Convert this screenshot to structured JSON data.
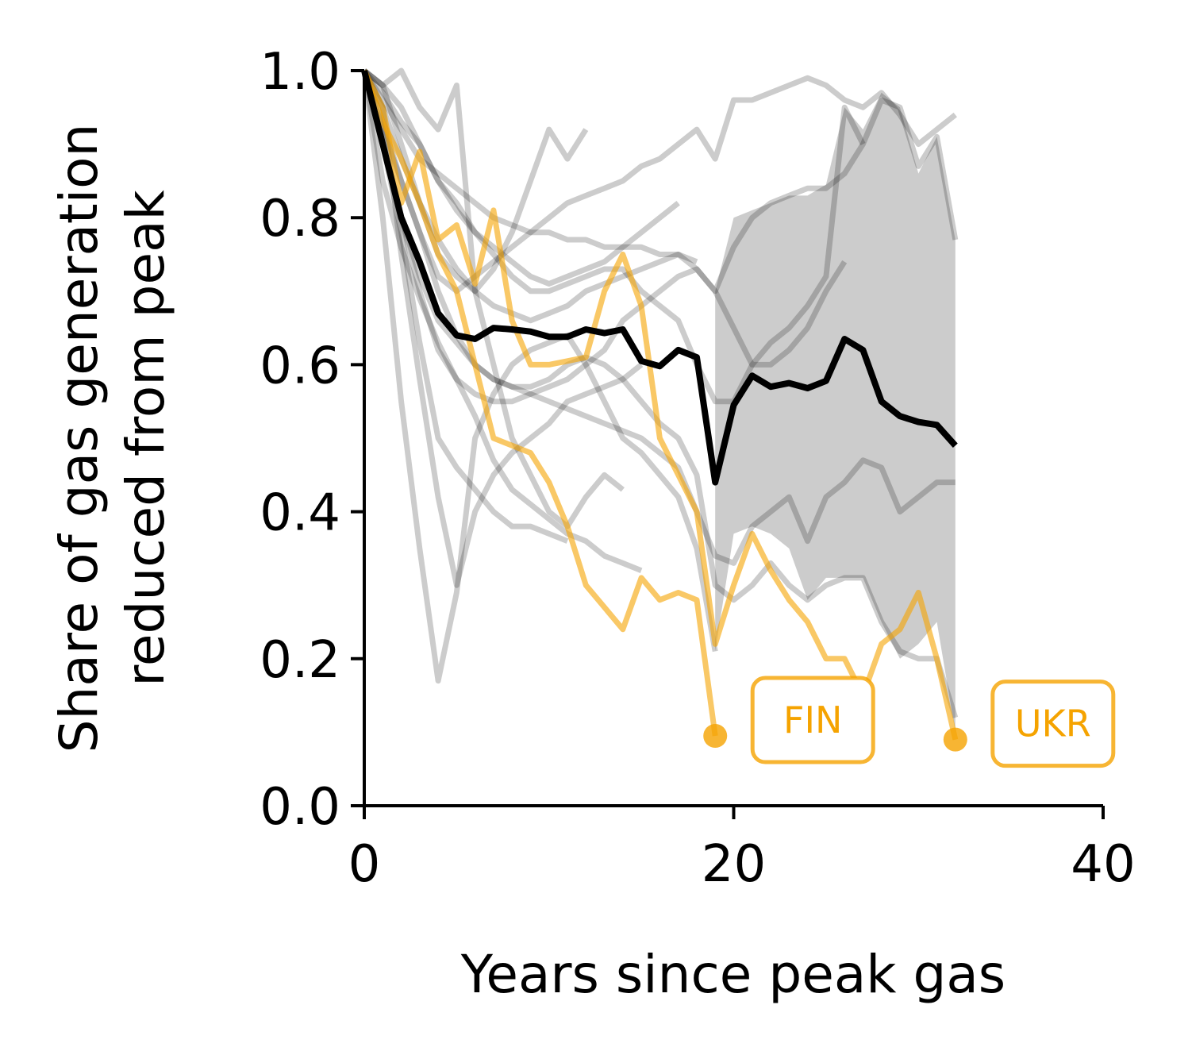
{
  "chart_data": {
    "type": "line",
    "title": "",
    "xlabel": "Years since peak gas",
    "ylabel": "Share of gas generation reduced from peak",
    "ylabel_lines": [
      "Share of gas generation",
      "reduced from peak"
    ],
    "xlim": [
      0,
      40
    ],
    "ylim": [
      0,
      1.0
    ],
    "x_ticks": [
      "0",
      "20",
      "40"
    ],
    "y_ticks": [
      "0.0",
      "0.2",
      "0.4",
      "0.6",
      "0.8",
      "1.0"
    ],
    "grid": false,
    "colors": {
      "median": "#000000",
      "highlight": "#f5a300",
      "background": "#000000",
      "band": "#808080"
    },
    "median": {
      "x": [
        0,
        1,
        2,
        3,
        4,
        5,
        6,
        7,
        8,
        9,
        10,
        11,
        12,
        13,
        14,
        15,
        16,
        17,
        18,
        19,
        20,
        21,
        22,
        23,
        24,
        25,
        26,
        27,
        28,
        29,
        30,
        31,
        32
      ],
      "y": [
        1.0,
        0.9,
        0.8,
        0.74,
        0.67,
        0.64,
        0.635,
        0.65,
        0.648,
        0.645,
        0.638,
        0.638,
        0.648,
        0.643,
        0.648,
        0.605,
        0.598,
        0.62,
        0.61,
        0.44,
        0.545,
        0.585,
        0.57,
        0.575,
        0.568,
        0.578,
        0.635,
        0.62,
        0.55,
        0.53,
        0.522,
        0.518,
        0.49
      ]
    },
    "band": {
      "x": [
        19,
        20,
        21,
        22,
        23,
        24,
        25,
        26,
        27,
        28,
        29,
        30,
        31,
        32
      ],
      "upper": [
        0.7,
        0.8,
        0.81,
        0.82,
        0.83,
        0.83,
        0.845,
        0.95,
        0.92,
        0.97,
        0.95,
        0.86,
        0.91,
        0.77
      ],
      "lower": [
        0.21,
        0.37,
        0.38,
        0.37,
        0.35,
        0.28,
        0.31,
        0.31,
        0.31,
        0.25,
        0.2,
        0.22,
        0.25,
        0.1
      ]
    },
    "highlighted_series": [
      {
        "name": "FIN",
        "x": [
          0,
          1,
          2,
          3,
          4,
          5,
          6,
          7,
          8,
          9,
          10,
          11,
          12,
          13,
          14,
          15,
          16,
          17,
          18,
          19
        ],
        "y": [
          1.0,
          0.93,
          0.88,
          0.82,
          0.75,
          0.7,
          0.6,
          0.5,
          0.49,
          0.48,
          0.44,
          0.38,
          0.3,
          0.27,
          0.24,
          0.31,
          0.28,
          0.29,
          0.28,
          0.095
        ]
      },
      {
        "name": "UKR",
        "x": [
          0,
          1,
          2,
          3,
          4,
          5,
          6,
          7,
          8,
          9,
          10,
          11,
          12,
          13,
          14,
          15,
          16,
          17,
          18,
          19,
          20,
          21,
          22,
          23,
          24,
          25,
          26,
          27,
          28,
          29,
          30,
          31,
          32
        ],
        "y": [
          1.0,
          0.95,
          0.82,
          0.89,
          0.77,
          0.79,
          0.71,
          0.81,
          0.66,
          0.6,
          0.6,
          0.605,
          0.61,
          0.7,
          0.75,
          0.68,
          0.5,
          0.45,
          0.4,
          0.22,
          0.3,
          0.37,
          0.32,
          0.28,
          0.25,
          0.2,
          0.2,
          0.15,
          0.22,
          0.24,
          0.29,
          0.2,
          0.09
        ]
      }
    ],
    "background_series": [
      {
        "x": [
          0,
          1,
          2,
          3,
          4,
          5,
          6,
          7,
          8,
          9,
          10,
          11,
          12,
          13,
          14,
          15
        ],
        "y": [
          1.0,
          0.85,
          0.76,
          0.69,
          0.63,
          0.58,
          0.53,
          0.47,
          0.43,
          0.41,
          0.39,
          0.37,
          0.36,
          0.34,
          0.33,
          0.32
        ]
      },
      {
        "x": [
          0,
          1,
          2,
          3,
          4,
          5,
          6,
          7,
          8,
          9,
          10,
          11,
          12,
          13,
          14,
          15,
          16,
          17,
          18,
          19,
          20,
          21,
          22,
          23,
          24,
          25,
          26
        ],
        "y": [
          1.0,
          0.95,
          0.88,
          0.82,
          0.77,
          0.73,
          0.7,
          0.68,
          0.67,
          0.66,
          0.67,
          0.68,
          0.7,
          0.71,
          0.72,
          0.73,
          0.74,
          0.75,
          0.73,
          0.7,
          0.65,
          0.6,
          0.6,
          0.62,
          0.65,
          0.7,
          0.74
        ]
      },
      {
        "x": [
          0,
          1,
          2,
          3,
          4,
          5,
          6,
          7,
          8,
          9,
          10,
          11,
          12,
          13,
          14,
          15,
          16,
          17,
          18,
          19,
          20,
          21,
          22,
          23,
          24,
          25,
          26,
          27,
          28,
          29,
          30,
          31,
          32
        ],
        "y": [
          1.0,
          0.92,
          0.85,
          0.78,
          0.72,
          0.7,
          0.72,
          0.74,
          0.76,
          0.78,
          0.8,
          0.82,
          0.83,
          0.84,
          0.85,
          0.87,
          0.88,
          0.9,
          0.92,
          0.88,
          0.96,
          0.96,
          0.97,
          0.98,
          0.99,
          0.98,
          0.96,
          0.95,
          0.97,
          0.94,
          0.9,
          0.92,
          0.94
        ]
      },
      {
        "x": [
          0,
          1,
          2,
          3,
          4,
          5,
          6,
          7,
          8,
          9,
          10,
          11,
          12,
          13,
          14,
          15,
          16,
          17,
          18,
          19,
          20,
          21,
          22,
          23,
          24,
          25,
          26,
          27
        ],
        "y": [
          1.0,
          0.98,
          0.95,
          0.9,
          0.85,
          0.82,
          0.78,
          0.75,
          0.72,
          0.7,
          0.7,
          0.71,
          0.72,
          0.73,
          0.73,
          0.7,
          0.68,
          0.66,
          0.6,
          0.55,
          0.55,
          0.6,
          0.63,
          0.65,
          0.68,
          0.72,
          0.95,
          0.9
        ]
      },
      {
        "x": [
          0,
          1,
          2,
          3,
          4,
          5,
          6,
          7,
          8,
          9,
          10,
          11,
          12,
          13,
          14,
          15,
          16,
          17,
          18,
          19,
          20,
          21,
          22,
          23,
          24,
          25,
          26,
          27,
          28,
          29,
          30,
          31,
          32
        ],
        "y": [
          1.0,
          0.9,
          0.8,
          0.7,
          0.62,
          0.58,
          0.56,
          0.55,
          0.55,
          0.56,
          0.55,
          0.54,
          0.53,
          0.52,
          0.51,
          0.5,
          0.48,
          0.46,
          0.4,
          0.34,
          0.33,
          0.38,
          0.4,
          0.42,
          0.36,
          0.42,
          0.44,
          0.47,
          0.46,
          0.4,
          0.42,
          0.44,
          0.44
        ]
      },
      {
        "x": [
          0,
          1,
          2,
          3,
          4,
          5,
          6,
          7,
          8,
          9,
          10,
          11,
          12,
          13,
          14,
          15
        ],
        "y": [
          1.0,
          0.95,
          0.75,
          0.58,
          0.42,
          0.3,
          0.4,
          0.45,
          0.48,
          0.5,
          0.52,
          0.55,
          0.56,
          0.57,
          0.58,
          0.6
        ]
      },
      {
        "x": [
          0,
          1,
          2,
          3,
          4,
          5,
          6,
          7,
          8,
          9,
          10,
          11,
          12,
          13,
          14,
          15,
          16,
          17,
          18,
          19
        ],
        "y": [
          1.0,
          0.8,
          0.55,
          0.35,
          0.17,
          0.29,
          0.5,
          0.56,
          0.6,
          0.62,
          0.63,
          0.64,
          0.6,
          0.55,
          0.5,
          0.48,
          0.45,
          0.42,
          0.35,
          0.21
        ]
      },
      {
        "x": [
          0,
          1,
          2,
          3,
          4,
          5,
          6,
          7,
          8,
          9,
          10,
          11,
          12,
          13,
          14
        ],
        "y": [
          1.0,
          0.98,
          1.0,
          0.95,
          0.92,
          0.98,
          0.7,
          0.6,
          0.5,
          0.45,
          0.4,
          0.38,
          0.42,
          0.45,
          0.43
        ]
      },
      {
        "x": [
          0,
          1,
          2,
          3,
          4,
          5,
          6,
          7,
          8,
          9,
          10,
          11,
          12,
          13,
          14,
          15,
          16,
          17
        ],
        "y": [
          1.0,
          0.97,
          0.93,
          0.9,
          0.85,
          0.81,
          0.78,
          0.76,
          0.74,
          0.72,
          0.71,
          0.72,
          0.73,
          0.74,
          0.76,
          0.78,
          0.8,
          0.82
        ]
      },
      {
        "x": [
          0,
          1,
          2,
          3,
          4,
          5,
          6,
          7,
          8,
          9,
          10,
          11,
          12
        ],
        "y": [
          1.0,
          0.98,
          0.9,
          0.82,
          0.75,
          0.72,
          0.7,
          0.73,
          0.78,
          0.85,
          0.92,
          0.88,
          0.92
        ]
      },
      {
        "x": [
          0,
          1,
          2,
          3,
          4,
          5,
          6,
          7,
          8,
          9,
          10,
          11,
          12,
          13,
          14,
          15,
          16,
          17,
          18,
          19,
          20,
          21,
          22,
          23,
          24,
          25,
          26,
          27,
          28,
          29,
          30,
          31,
          32
        ],
        "y": [
          1.0,
          0.9,
          0.8,
          0.72,
          0.66,
          0.63,
          0.6,
          0.58,
          0.57,
          0.57,
          0.58,
          0.6,
          0.61,
          0.6,
          0.58,
          0.55,
          0.52,
          0.5,
          0.45,
          0.3,
          0.28,
          0.3,
          0.33,
          0.3,
          0.28,
          0.3,
          0.31,
          0.31,
          0.25,
          0.21,
          0.2,
          0.2,
          0.12
        ]
      },
      {
        "x": [
          0,
          1,
          2,
          3,
          4,
          5,
          6,
          7,
          8,
          9,
          10,
          11
        ],
        "y": [
          1.0,
          0.9,
          0.78,
          0.63,
          0.5,
          0.46,
          0.43,
          0.4,
          0.38,
          0.38,
          0.37,
          0.36
        ]
      },
      {
        "x": [
          0,
          1,
          2,
          3,
          4,
          5,
          6,
          7,
          8,
          9,
          10,
          11,
          12,
          13,
          14,
          15,
          16,
          17,
          18
        ],
        "y": [
          1.0,
          0.96,
          0.92,
          0.88,
          0.86,
          0.84,
          0.82,
          0.8,
          0.79,
          0.78,
          0.78,
          0.77,
          0.77,
          0.76,
          0.76,
          0.76,
          0.75,
          0.75,
          0.74
        ]
      },
      {
        "x": [
          0,
          1,
          2,
          3,
          4,
          5,
          6,
          7,
          8,
          9,
          10,
          11,
          12,
          13,
          14,
          15,
          16,
          17,
          18,
          19,
          20,
          21,
          22,
          23,
          24,
          25,
          26,
          27,
          28,
          29,
          30,
          31,
          32
        ],
        "y": [
          1.0,
          0.93,
          0.85,
          0.78,
          0.7,
          0.64,
          0.6,
          0.58,
          0.57,
          0.56,
          0.57,
          0.58,
          0.6,
          0.62,
          0.66,
          0.68,
          0.7,
          0.72,
          0.73,
          0.7,
          0.76,
          0.8,
          0.82,
          0.83,
          0.84,
          0.84,
          0.86,
          0.9,
          0.96,
          0.95,
          0.87,
          0.91,
          0.77
        ]
      }
    ],
    "callouts": [
      {
        "label": "FIN",
        "series": "FIN"
      },
      {
        "label": "UKR",
        "series": "UKR"
      }
    ]
  }
}
